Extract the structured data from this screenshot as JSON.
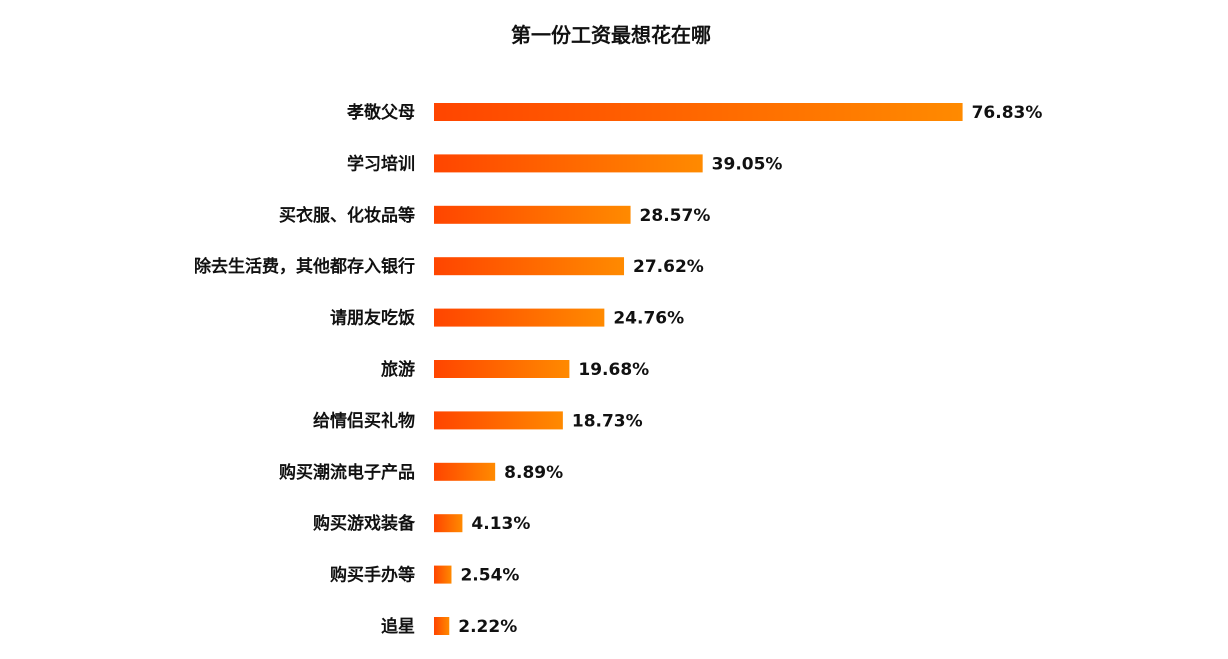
{
  "chart_data": {
    "type": "bar",
    "orientation": "horizontal",
    "title": "第一份工资最想花在哪",
    "unit": "%",
    "xlim": [
      0,
      100
    ],
    "grid": false,
    "categories": [
      "孝敬父母",
      "学习培训",
      "买衣服、化妆品等",
      "除去生活费，其他都存入银行",
      "请朋友吃饭",
      "旅游",
      "给情侣买礼物",
      "购买潮流电子产品",
      "购买游戏装备",
      "购买手办等",
      "追星"
    ],
    "values": [
      76.83,
      39.05,
      28.57,
      27.62,
      24.76,
      19.68,
      18.73,
      8.89,
      4.13,
      2.54,
      2.22
    ],
    "value_labels": [
      "76.83%",
      "39.05%",
      "28.57%",
      "27.62%",
      "24.76%",
      "19.68%",
      "18.73%",
      "8.89%",
      "4.13%",
      "2.54%",
      "2.22%"
    ],
    "bar_gradient": [
      "#ff4500",
      "#ff8a00"
    ]
  }
}
